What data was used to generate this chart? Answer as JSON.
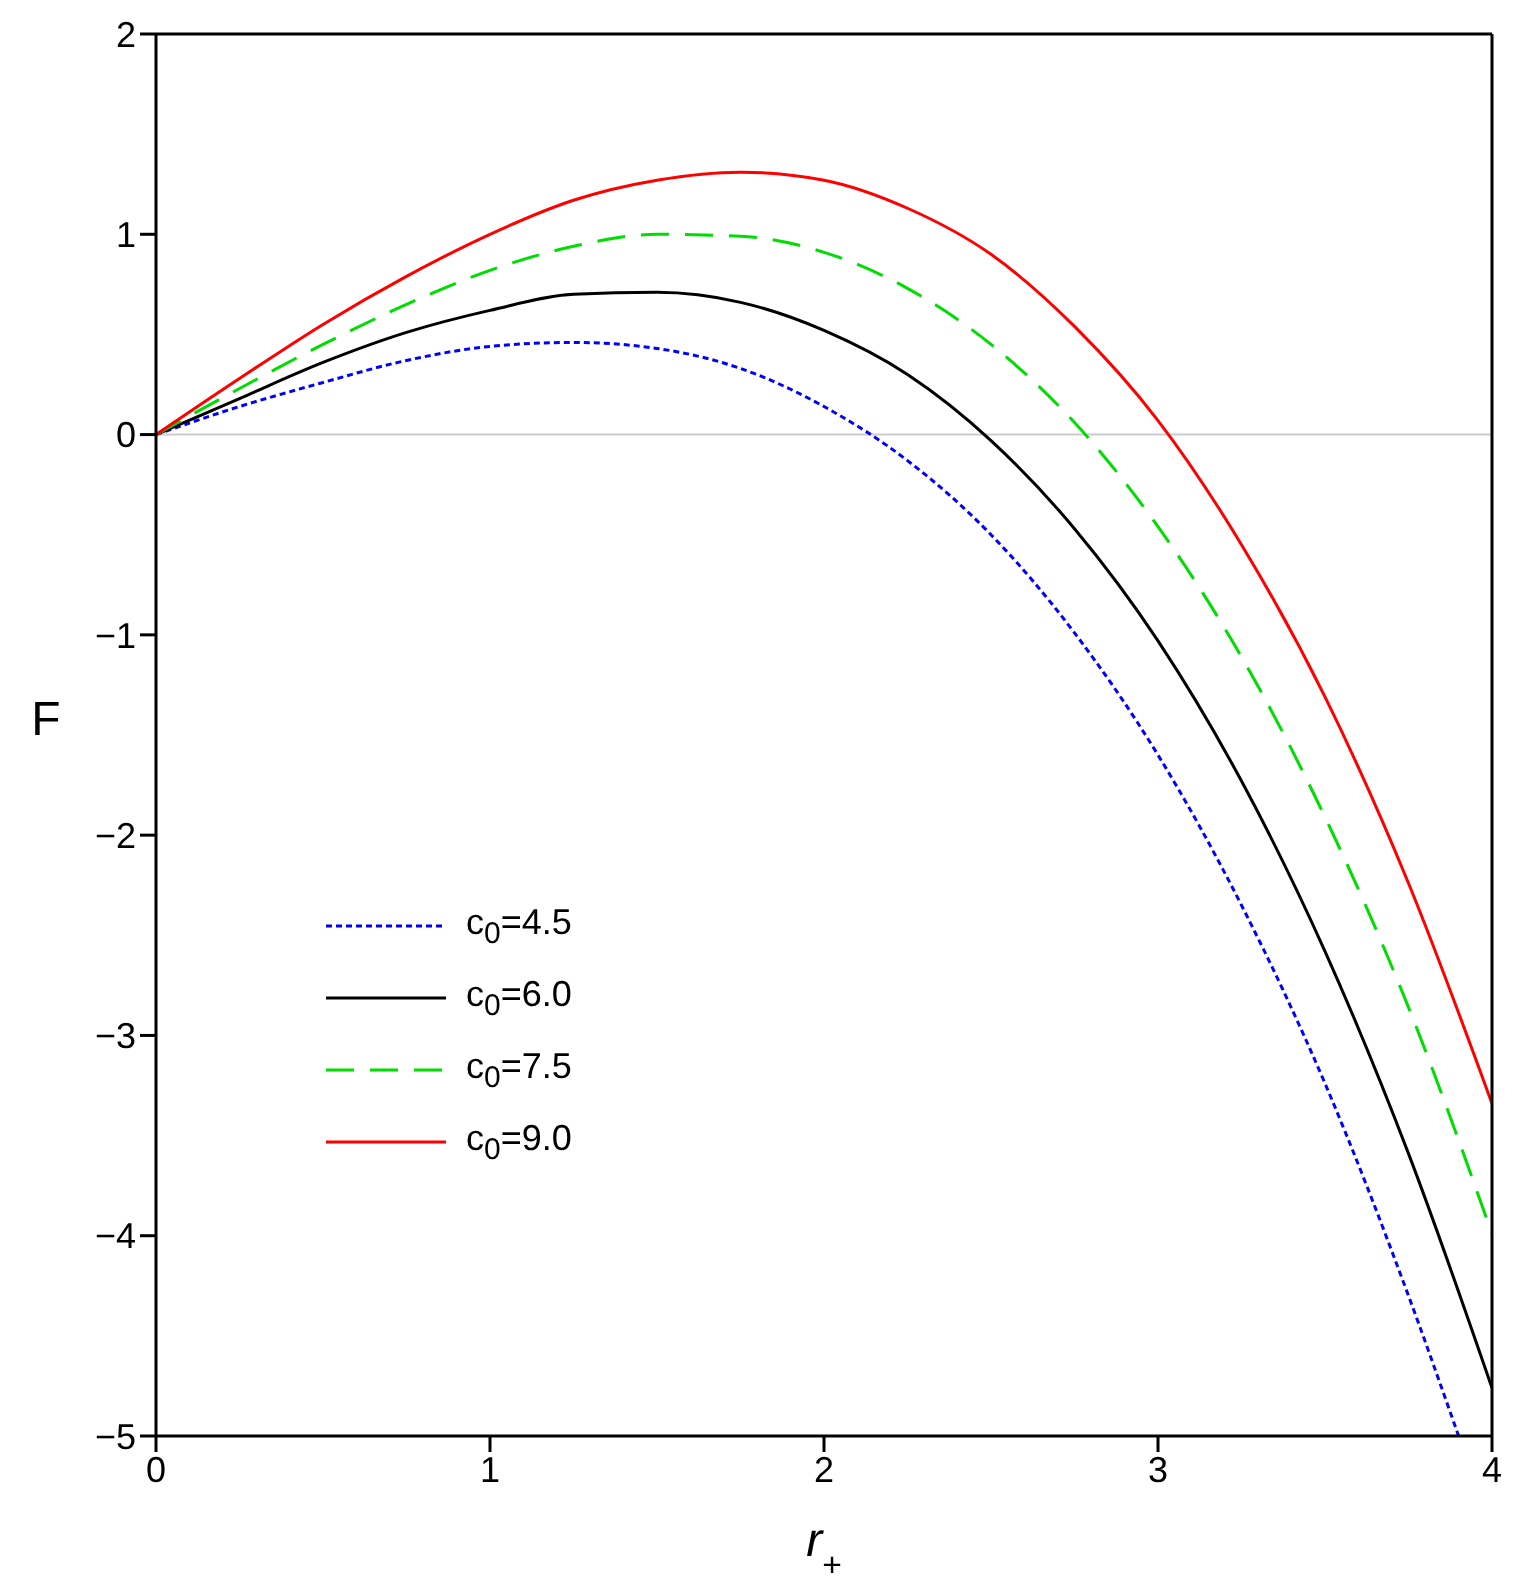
{
  "chart_data": {
    "type": "line",
    "xlabel": "r$_{+}$",
    "ylabel": "F",
    "xlim": [
      0,
      4
    ],
    "ylim": [
      -5,
      2
    ],
    "xticks": [
      0,
      1,
      2,
      3,
      4
    ],
    "yticks": [
      -5,
      -4,
      -3,
      -2,
      -1,
      0,
      1,
      2
    ],
    "legend": "bottom left",
    "marker": "none",
    "ref_lines": [
      {
        "axis": "y",
        "value": 0,
        "color": "#cccccc"
      }
    ],
    "series": [
      {
        "name": "c$_{0}$=4.5",
        "color": "#0000ff",
        "line_style": "dotted",
        "x": [
          0,
          0.25,
          0.5,
          0.75,
          1,
          1.25,
          1.5,
          1.75,
          2,
          2.25,
          2.5,
          2.75,
          3,
          3.25,
          3.5,
          3.75,
          3.9
        ],
        "values": [
          0,
          0.14,
          0.26,
          0.37,
          0.44,
          0.46,
          0.43,
          0.33,
          0.14,
          -0.13,
          -0.5,
          -0.99,
          -1.6,
          -2.35,
          -3.24,
          -4.3,
          -5.0
        ]
      },
      {
        "name": "c$_{0}$=6.0",
        "color": "#000000",
        "line_style": "solid",
        "x": [
          0,
          0.25,
          0.5,
          0.75,
          1,
          1.25,
          1.5,
          1.75,
          2,
          2.25,
          2.5,
          2.75,
          3,
          3.25,
          3.5,
          3.75,
          4
        ],
        "values": [
          0,
          0.18,
          0.36,
          0.51,
          0.62,
          0.7,
          0.71,
          0.66,
          0.52,
          0.3,
          -0.03,
          -0.47,
          -1.03,
          -1.73,
          -2.58,
          -3.59,
          -4.76
        ]
      },
      {
        "name": "c$_{0}$=7.5",
        "color": "#00dd00",
        "line_style": "dashed",
        "x": [
          0,
          0.25,
          0.5,
          0.75,
          1,
          1.25,
          1.5,
          1.75,
          2,
          2.25,
          2.5,
          2.75,
          3,
          3.25,
          3.5,
          3.75,
          4
        ],
        "values": [
          0,
          0.23,
          0.45,
          0.65,
          0.82,
          0.94,
          1.0,
          0.99,
          0.91,
          0.73,
          0.45,
          0.06,
          -0.46,
          -1.11,
          -1.91,
          -2.86,
          -3.99
        ]
      },
      {
        "name": "c$_{0}$=9.0",
        "color": "#ff0000",
        "line_style": "solid",
        "x": [
          0,
          0.25,
          0.5,
          0.75,
          1,
          1.25,
          1.5,
          1.75,
          2,
          2.25,
          2.5,
          2.75,
          3,
          3.25,
          3.5,
          3.75,
          4
        ],
        "values": [
          0,
          0.28,
          0.55,
          0.79,
          1.0,
          1.17,
          1.27,
          1.31,
          1.27,
          1.13,
          0.9,
          0.54,
          0.07,
          -0.55,
          -1.31,
          -2.24,
          -3.34
        ]
      }
    ]
  }
}
